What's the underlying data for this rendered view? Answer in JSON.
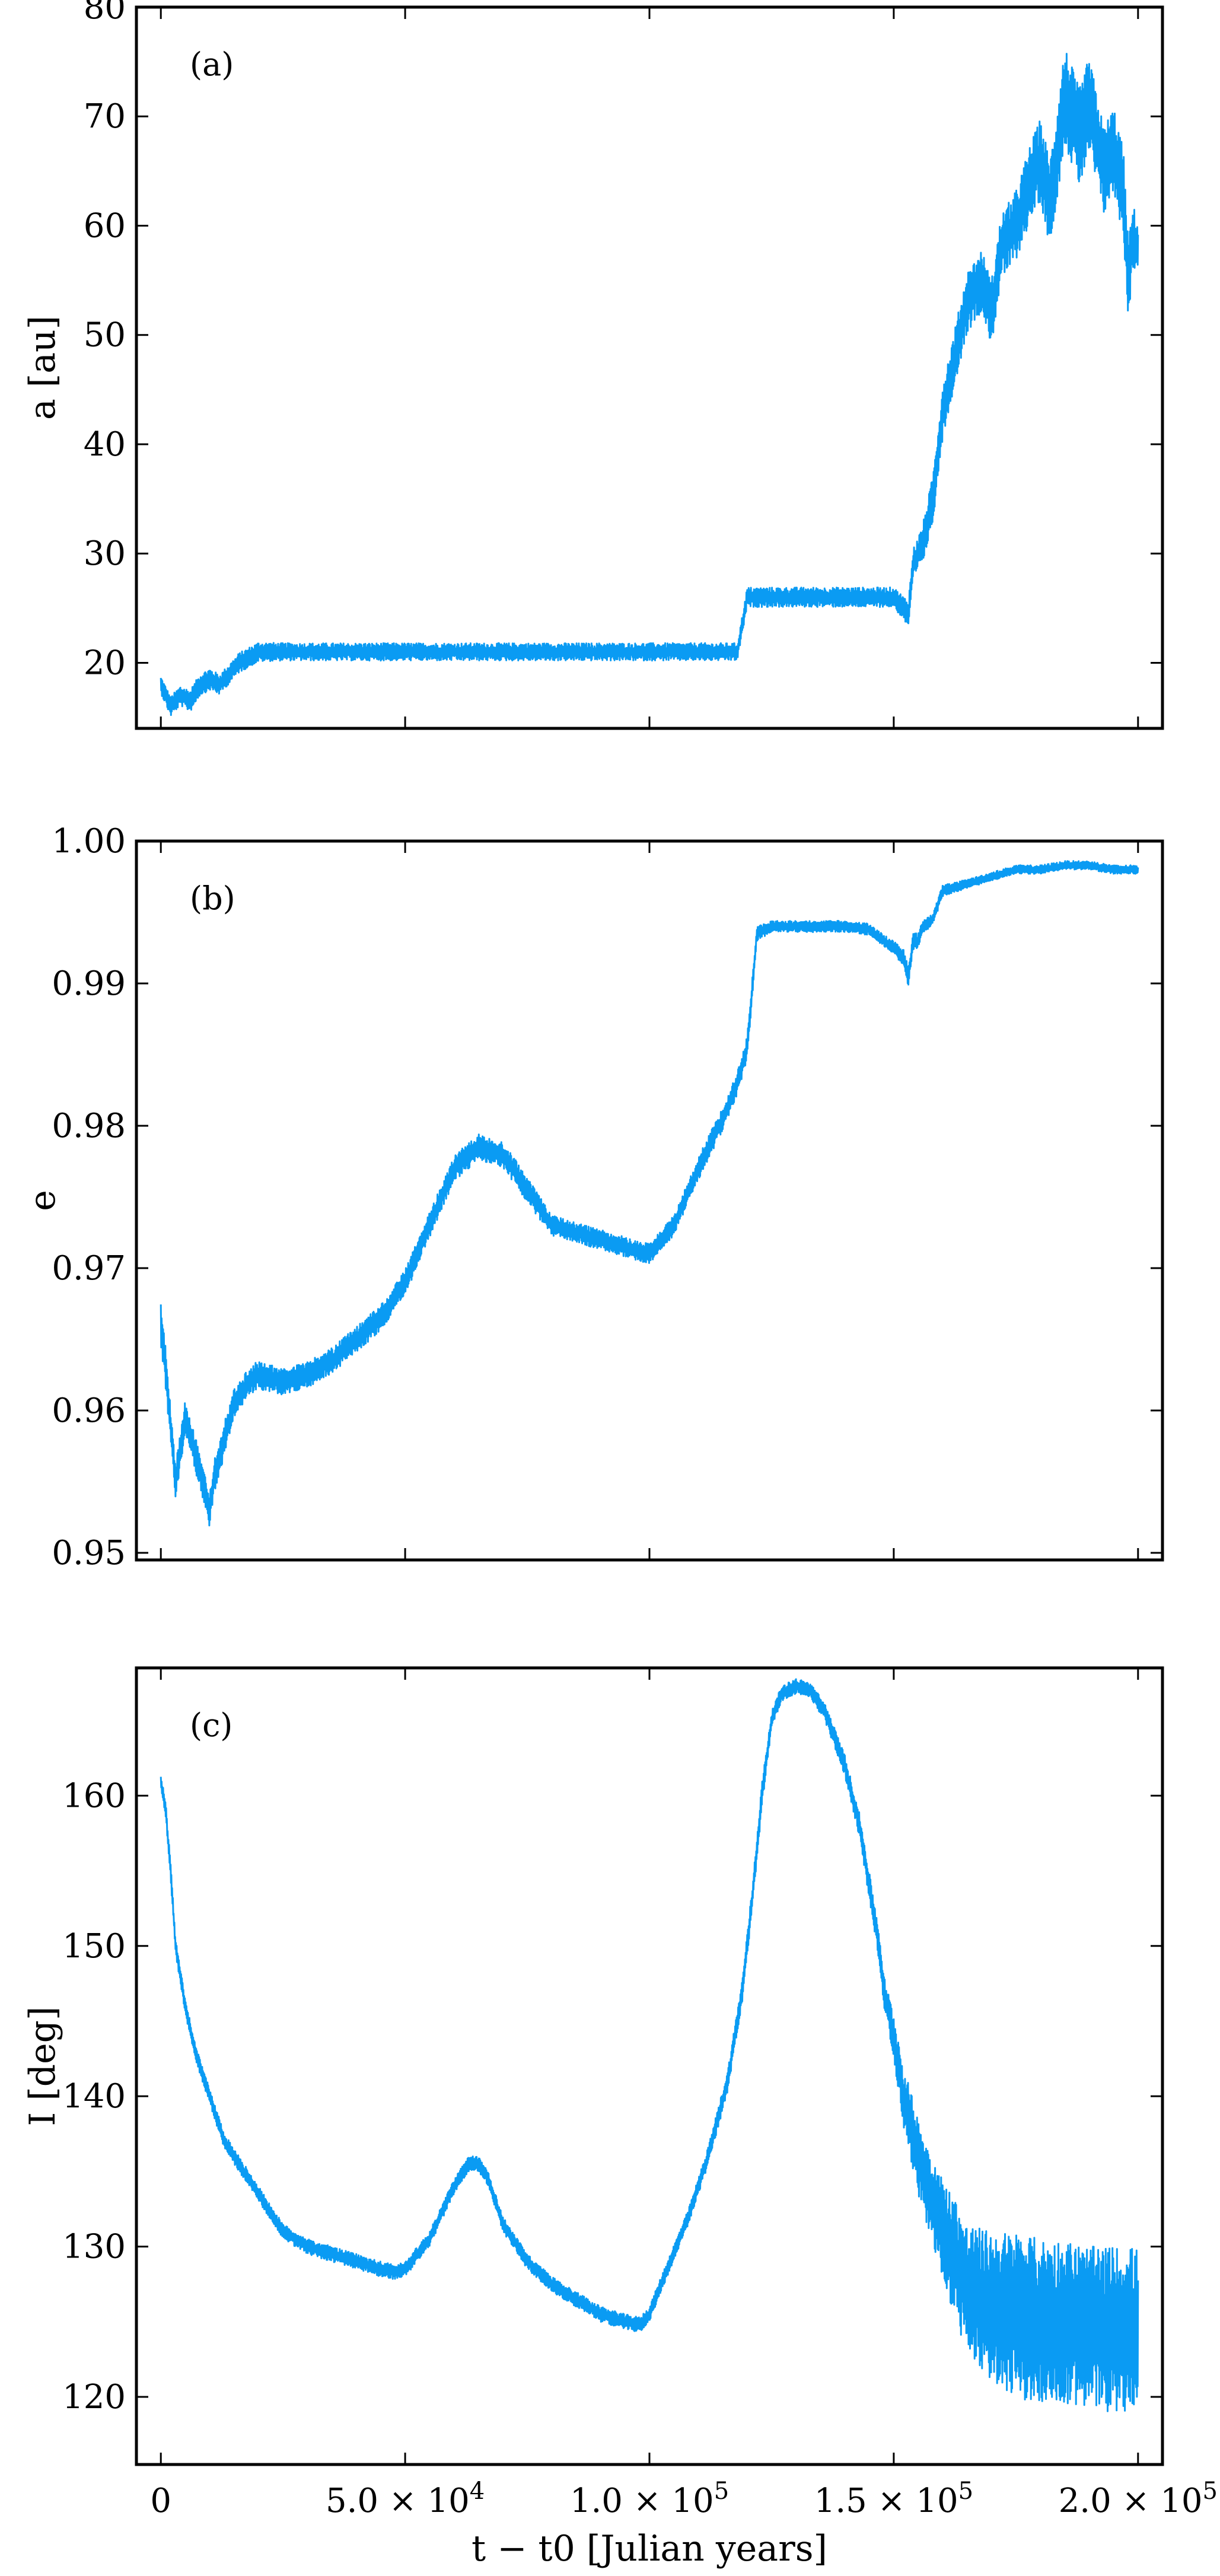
{
  "chart_data": [
    {
      "type": "line",
      "panel_tag": "(a)",
      "ylabel": "a [au]",
      "xlim": [
        -5000,
        205000
      ],
      "ylim": [
        14,
        80
      ],
      "yticks": [
        20,
        30,
        40,
        50,
        60,
        70,
        80
      ],
      "ytick_labels": [
        "20",
        "30",
        "40",
        "50",
        "60",
        "70",
        "80"
      ],
      "series": [
        {
          "color": "#0a9bf3",
          "x": [
            0,
            2000,
            4000,
            6000,
            8000,
            10000,
            12000,
            14000,
            16000,
            18000,
            20000,
            25000,
            40000,
            60000,
            80000,
            100000,
            110000,
            118000,
            120000,
            122000,
            130000,
            140000,
            150000,
            153000,
            154000,
            155000,
            156000,
            158000,
            160000,
            162000,
            165000,
            168000,
            170000,
            172000,
            175000,
            178000,
            180000,
            182000,
            185000,
            188000,
            190000,
            193000,
            195000,
            197000,
            198000,
            199000,
            200000
          ],
          "y": [
            18,
            16,
            17,
            16.5,
            18,
            18.5,
            18,
            19,
            20,
            20.5,
            21,
            21,
            21,
            21,
            21,
            21,
            21,
            21,
            26,
            26,
            26,
            26,
            26,
            24.5,
            29,
            30,
            31,
            35,
            43,
            47,
            53,
            55,
            52,
            58,
            60,
            64,
            66,
            62,
            72,
            68,
            71,
            65,
            67,
            63,
            55,
            59,
            58
          ],
          "amplitude": [
            0.8,
            0.9,
            0.9,
            1.0,
            1.0,
            1.0,
            0.9,
            0.9,
            0.9,
            0.9,
            0.9,
            0.8,
            0.8,
            0.8,
            0.8,
            0.8,
            0.8,
            0.8,
            0.9,
            0.9,
            0.9,
            0.9,
            0.9,
            1.2,
            1.5,
            1.5,
            1.8,
            2.2,
            2.5,
            2.5,
            2.8,
            2.8,
            3.0,
            3.0,
            3.2,
            3.5,
            3.8,
            4.0,
            4.5,
            4.5,
            4.5,
            4.0,
            4.0,
            4.0,
            3.5,
            3.0,
            2.0
          ]
        }
      ]
    },
    {
      "type": "line",
      "panel_tag": "(b)",
      "ylabel": "e",
      "xlim": [
        -5000,
        205000
      ],
      "ylim": [
        0.9495,
        1.0
      ],
      "yticks": [
        0.95,
        0.96,
        0.97,
        0.98,
        0.99,
        1.0
      ],
      "ytick_labels": [
        "0.95",
        "0.96",
        "0.97",
        "0.98",
        "0.99",
        "1.00"
      ],
      "series": [
        {
          "color": "#0a9bf3",
          "x": [
            0,
            1000,
            3000,
            5000,
            7000,
            9000,
            10000,
            11000,
            13000,
            15000,
            18000,
            20000,
            25000,
            30000,
            35000,
            40000,
            45000,
            50000,
            55000,
            60000,
            65000,
            70000,
            75000,
            80000,
            85000,
            90000,
            95000,
            100000,
            105000,
            110000,
            115000,
            118000,
            120000,
            122000,
            125000,
            130000,
            135000,
            140000,
            145000,
            148000,
            150000,
            152000,
            153000,
            154000,
            155000,
            156000,
            158000,
            160000,
            165000,
            170000,
            175000,
            180000,
            185000,
            190000,
            195000,
            200000
          ],
          "y": [
            0.966,
            0.963,
            0.955,
            0.9595,
            0.957,
            0.9545,
            0.953,
            0.9555,
            0.958,
            0.9605,
            0.962,
            0.9625,
            0.962,
            0.9625,
            0.9635,
            0.965,
            0.9665,
            0.969,
            0.973,
            0.977,
            0.9785,
            0.978,
            0.9755,
            0.973,
            0.9725,
            0.972,
            0.9715,
            0.971,
            0.973,
            0.977,
            0.9805,
            0.983,
            0.9855,
            0.9935,
            0.994,
            0.994,
            0.994,
            0.994,
            0.9938,
            0.993,
            0.9925,
            0.9918,
            0.9905,
            0.993,
            0.993,
            0.994,
            0.9945,
            0.9965,
            0.997,
            0.9975,
            0.998,
            0.998,
            0.9983,
            0.9983,
            0.998,
            0.998
          ],
          "amplitude": [
            0.0015,
            0.0015,
            0.0012,
            0.0012,
            0.0012,
            0.0012,
            0.0012,
            0.0012,
            0.0012,
            0.001,
            0.001,
            0.001,
            0.0009,
            0.0009,
            0.0009,
            0.0009,
            0.0009,
            0.0009,
            0.0009,
            0.0009,
            0.0009,
            0.0009,
            0.0009,
            0.0007,
            0.0007,
            0.0007,
            0.0007,
            0.0007,
            0.0007,
            0.0008,
            0.0008,
            0.0008,
            0.0008,
            0.0005,
            0.0004,
            0.0004,
            0.0004,
            0.0004,
            0.0004,
            0.0004,
            0.0005,
            0.0006,
            0.0008,
            0.0006,
            0.0005,
            0.0005,
            0.0004,
            0.0004,
            0.0003,
            0.0003,
            0.0003,
            0.0003,
            0.0003,
            0.0003,
            0.0003,
            0.0003
          ]
        }
      ]
    },
    {
      "type": "line",
      "panel_tag": "(c)",
      "ylabel": "I [deg]",
      "xlabel": "t − t0 [Julian years]",
      "xlim": [
        -5000,
        205000
      ],
      "ylim": [
        115.5,
        168.5
      ],
      "yticks": [
        120,
        130,
        140,
        150,
        160
      ],
      "ytick_labels": [
        "120",
        "130",
        "140",
        "150",
        "160"
      ],
      "xticks": [
        0,
        50000,
        100000,
        150000,
        200000
      ],
      "xtick_labels": [
        "0",
        "5.0 × 10^4",
        "1.0 × 10^5",
        "1.5 × 10^5",
        "2.0 × 10^5"
      ],
      "series": [
        {
          "color": "#0a9bf3",
          "x": [
            0,
            1000,
            2000,
            3000,
            5000,
            7000,
            9000,
            11000,
            13000,
            15000,
            17000,
            19000,
            21000,
            23000,
            25000,
            30000,
            35000,
            40000,
            45000,
            48000,
            50000,
            55000,
            60000,
            63000,
            65000,
            67000,
            70000,
            75000,
            80000,
            85000,
            90000,
            95000,
            98000,
            100000,
            103000,
            108000,
            112000,
            116000,
            119000,
            121000,
            123000,
            125000,
            127000,
            130000,
            133000,
            136000,
            140000,
            143000,
            145000,
            147000,
            148000,
            150000,
            152000,
            155000,
            158000,
            160000,
            163000,
            165000,
            170000,
            175000,
            180000,
            185000,
            190000,
            195000,
            200000
          ],
          "y": [
            161,
            159,
            155,
            150,
            146,
            143,
            141,
            139,
            137,
            136,
            135,
            134,
            133,
            132,
            131,
            130,
            129.5,
            129,
            128.5,
            128.3,
            128.5,
            130.5,
            134,
            135.5,
            135.5,
            134.5,
            131.5,
            129,
            127.5,
            126.5,
            125.5,
            125,
            124.8,
            125.5,
            128,
            132,
            136,
            141,
            147,
            153,
            160,
            165,
            166.8,
            167.3,
            167,
            165.5,
            162,
            158,
            154,
            150,
            147,
            144,
            140,
            136,
            133,
            131,
            129,
            127,
            126,
            125.5,
            125,
            125,
            124.5,
            124.5,
            124.5
          ],
          "amplitude": [
            0.5,
            0.5,
            0.5,
            0.5,
            0.5,
            0.5,
            0.5,
            0.5,
            0.5,
            0.5,
            0.5,
            0.5,
            0.5,
            0.5,
            0.5,
            0.5,
            0.5,
            0.5,
            0.5,
            0.5,
            0.5,
            0.5,
            0.5,
            0.5,
            0.5,
            0.5,
            0.5,
            0.5,
            0.5,
            0.5,
            0.5,
            0.5,
            0.5,
            0.5,
            0.5,
            0.5,
            0.6,
            0.7,
            0.8,
            0.8,
            0.8,
            0.6,
            0.5,
            0.5,
            0.5,
            0.6,
            0.7,
            0.8,
            0.9,
            1.0,
            1.0,
            1.5,
            2.0,
            2.5,
            3.0,
            3.5,
            4.0,
            4.5,
            5.0,
            5.5,
            5.5,
            5.5,
            5.5,
            5.5,
            5.5
          ]
        }
      ]
    }
  ]
}
